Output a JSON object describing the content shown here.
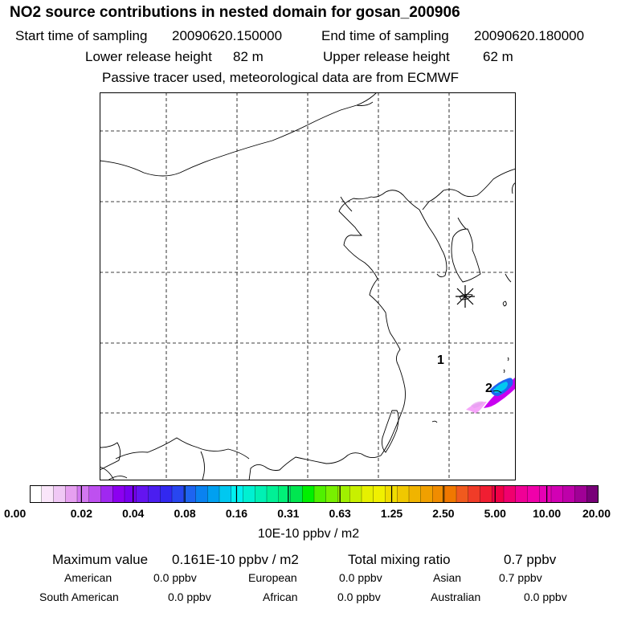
{
  "header": {
    "title": "NO2 source contributions in nested domain for gosan_200906",
    "start_label": "Start time of sampling",
    "start_value": "20090620.150000",
    "end_label": "End time of sampling",
    "end_value": "20090620.180000",
    "lower_label": "Lower release height",
    "lower_value": "82 m",
    "upper_label": "Upper release height",
    "upper_value": "62 m",
    "tracer_note": "Passive tracer used, meteorological data are from ECMWF"
  },
  "map": {
    "receptor_icon": "asterisk-icon",
    "labels": [
      "1",
      "2"
    ]
  },
  "colorbar": {
    "ticks": [
      "0.00",
      "0.02",
      "0.04",
      "0.08",
      "0.16",
      "0.31",
      "0.63",
      "1.25",
      "2.50",
      "5.00",
      "10.00",
      "20.00"
    ],
    "colors": [
      "#ffffff",
      "#fae6fa",
      "#f0c8f5",
      "#e6a0f0",
      "#d278f0",
      "#be50f0",
      "#a028f0",
      "#8c00f0",
      "#7800f0",
      "#6414f0",
      "#4b1ef0",
      "#3228f0",
      "#2846f0",
      "#1e64f0",
      "#0a82f0",
      "#00a0f0",
      "#00c8f0",
      "#00f0f0",
      "#00f0d2",
      "#00f0b4",
      "#00f096",
      "#00f078",
      "#00e650",
      "#00f000",
      "#50f000",
      "#78f000",
      "#a0f000",
      "#c8f000",
      "#e6f000",
      "#f0f000",
      "#f0dc00",
      "#f0c800",
      "#f0b400",
      "#f0a000",
      "#f08c00",
      "#f07800",
      "#f05a1e",
      "#f03c28",
      "#f01e32",
      "#f00046",
      "#f0006e",
      "#f00096",
      "#f000aa",
      "#e600b4",
      "#d200b4",
      "#be00aa",
      "#a00096",
      "#780078"
    ],
    "units": "10E-10 ppbv / m2"
  },
  "footer": {
    "max_label": "Maximum value",
    "max_value": "0.161E-10 ppbv / m2",
    "total_label": "Total mixing ratio",
    "total_value": "0.7 ppbv",
    "regions": [
      {
        "name": "American",
        "value": "0.0 ppbv"
      },
      {
        "name": "European",
        "value": "0.0 ppbv"
      },
      {
        "name": "Asian",
        "value": "0.7 ppbv"
      },
      {
        "name": "South American",
        "value": "0.0 ppbv"
      },
      {
        "name": "African",
        "value": "0.0 ppbv"
      },
      {
        "name": "Australian",
        "value": "0.0 ppbv"
      }
    ]
  }
}
